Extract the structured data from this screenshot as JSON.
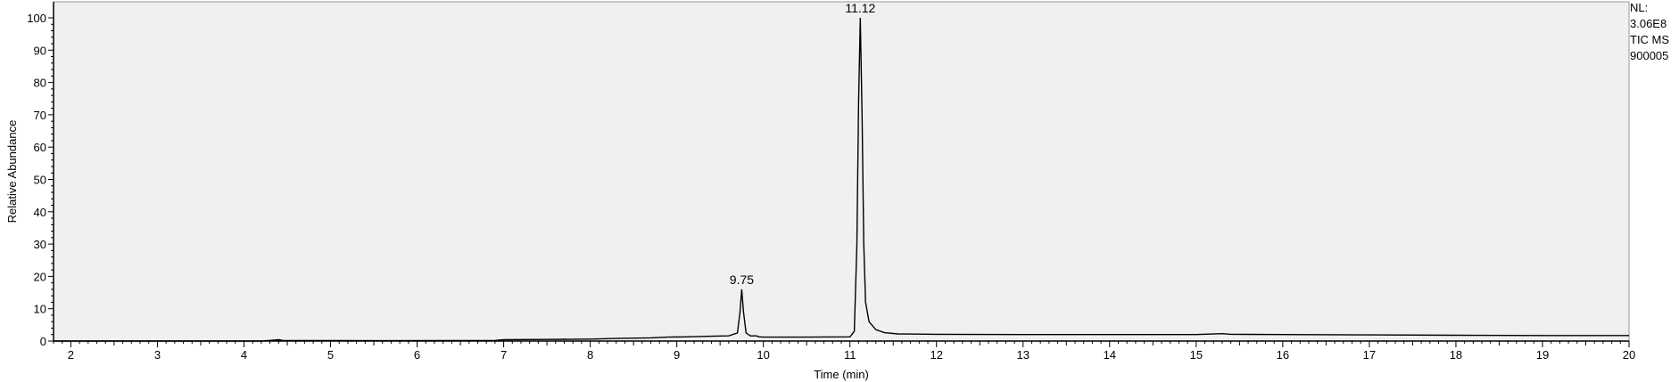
{
  "chart_data": {
    "type": "line",
    "title": "",
    "xlabel": "Time (min)",
    "ylabel": "Relative Abundance",
    "xlim": [
      1.8,
      20.0
    ],
    "ylim": [
      0,
      100
    ],
    "x_ticks": [
      "2",
      "3",
      "4",
      "5",
      "6",
      "7",
      "8",
      "9",
      "10",
      "11",
      "12",
      "13",
      "14",
      "15",
      "16",
      "17",
      "18",
      "19",
      "20"
    ],
    "y_ticks": [
      "0",
      "10",
      "20",
      "30",
      "40",
      "50",
      "60",
      "70",
      "80",
      "90",
      "100"
    ],
    "grid": false,
    "legend": "none",
    "peak_annotations": [
      {
        "label": "9.75",
        "x": 9.75,
        "y": 16
      },
      {
        "label": "11.12",
        "x": 11.12,
        "y": 100
      }
    ],
    "series": [
      {
        "x": [
          1.8,
          3.0,
          4.2,
          4.35,
          4.4,
          4.45,
          5.5,
          6.9,
          7.0,
          7.5,
          8.0,
          8.3,
          8.7,
          8.9,
          9.1,
          9.4,
          9.6,
          9.7,
          9.73,
          9.75,
          9.77,
          9.8,
          9.85,
          9.92,
          9.95,
          10.0,
          10.5,
          11.0,
          11.05,
          11.08,
          11.1,
          11.12,
          11.14,
          11.16,
          11.18,
          11.22,
          11.3,
          11.4,
          11.55,
          12.0,
          13.0,
          14.0,
          15.0,
          15.3,
          15.4,
          16.0,
          17.0,
          18.0,
          19.0,
          20.0
        ],
        "y": [
          0.0,
          0.0,
          0.0,
          0.3,
          0.4,
          0.2,
          0.1,
          0.2,
          0.4,
          0.5,
          0.6,
          0.8,
          1.0,
          1.2,
          1.3,
          1.5,
          1.6,
          2.5,
          9.0,
          16.0,
          9.0,
          2.5,
          1.6,
          1.6,
          1.3,
          1.2,
          1.2,
          1.3,
          3.0,
          30.0,
          74.0,
          100.0,
          70.0,
          30.0,
          12.0,
          6.0,
          3.5,
          2.6,
          2.2,
          2.1,
          2.0,
          2.0,
          2.0,
          2.3,
          2.1,
          2.0,
          1.9,
          1.8,
          1.7,
          1.7
        ]
      }
    ]
  },
  "info": {
    "nl_label": "NL:",
    "nl_value": "3.06E8",
    "trace": "TIC  MS",
    "file": "900005"
  },
  "colors": {
    "plot_bg": "#f0f0f0",
    "line": "#000000",
    "axis": "#000000"
  }
}
